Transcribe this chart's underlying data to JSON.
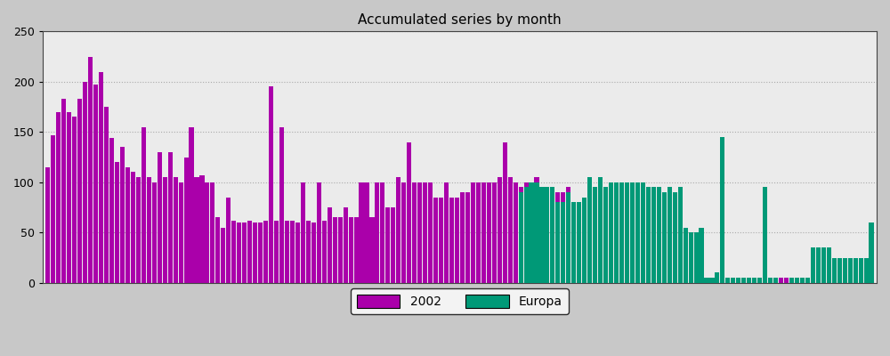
{
  "title": "Accumulated series by month",
  "color_2002": "#aa00aa",
  "color_europa": "#009977",
  "fig_bg": "#c8c8c8",
  "plot_bg": "#ebebeb",
  "ylim": [
    0,
    250
  ],
  "yticks": [
    0,
    50,
    100,
    150,
    200,
    250
  ],
  "values_2002": [
    115,
    147,
    170,
    183,
    170,
    165,
    183,
    200,
    225,
    197,
    210,
    175,
    144,
    120,
    135,
    115,
    110,
    105,
    155,
    105,
    100,
    130,
    105,
    130,
    105,
    100,
    125,
    155,
    105,
    107,
    100,
    100,
    65,
    55,
    85,
    62,
    60,
    60,
    62,
    60,
    60,
    62,
    195,
    62,
    155,
    62,
    62,
    60,
    100,
    62,
    60,
    100,
    62,
    75,
    65,
    65,
    75,
    65,
    65,
    100,
    100,
    65,
    100,
    100,
    75,
    75,
    105,
    100,
    140,
    100,
    100,
    100,
    100,
    85,
    85,
    100,
    85,
    85,
    90,
    90,
    100,
    100,
    100,
    100,
    100,
    105,
    140,
    105,
    100,
    95,
    100,
    100,
    105,
    95,
    95,
    95,
    90,
    90,
    95,
    80,
    80,
    85,
    105,
    95,
    105,
    95,
    100,
    100,
    100,
    100,
    100,
    100,
    100,
    95,
    95,
    95,
    90,
    95,
    90,
    95,
    55,
    50,
    50,
    55,
    5,
    5,
    5,
    10,
    5,
    5,
    5,
    5,
    5,
    5,
    5,
    95,
    5,
    5,
    5,
    5,
    5,
    5,
    5,
    5,
    35,
    35,
    35,
    35,
    25,
    25,
    25,
    25,
    25,
    25,
    25,
    60
  ],
  "values_europa": [
    0,
    0,
    0,
    0,
    0,
    0,
    0,
    0,
    0,
    0,
    0,
    0,
    0,
    0,
    0,
    0,
    0,
    0,
    0,
    0,
    0,
    0,
    0,
    0,
    0,
    0,
    0,
    0,
    0,
    0,
    0,
    0,
    0,
    0,
    0,
    0,
    0,
    0,
    0,
    0,
    0,
    0,
    0,
    0,
    0,
    0,
    0,
    0,
    0,
    0,
    0,
    0,
    0,
    0,
    0,
    0,
    0,
    0,
    0,
    0,
    0,
    0,
    0,
    0,
    0,
    0,
    0,
    0,
    0,
    0,
    0,
    0,
    0,
    0,
    0,
    0,
    0,
    0,
    0,
    0,
    0,
    0,
    0,
    0,
    0,
    0,
    0,
    0,
    0,
    90,
    95,
    100,
    100,
    95,
    95,
    95,
    80,
    80,
    90,
    80,
    80,
    85,
    105,
    95,
    105,
    95,
    100,
    100,
    100,
    100,
    100,
    100,
    100,
    95,
    95,
    95,
    90,
    95,
    90,
    95,
    55,
    50,
    50,
    55,
    5,
    5,
    10,
    145,
    5,
    5,
    5,
    5,
    5,
    5,
    5,
    95,
    5,
    5,
    0,
    0,
    5,
    5,
    5,
    5,
    35,
    35,
    35,
    35,
    25,
    25,
    25,
    25,
    25,
    25,
    25,
    60
  ]
}
